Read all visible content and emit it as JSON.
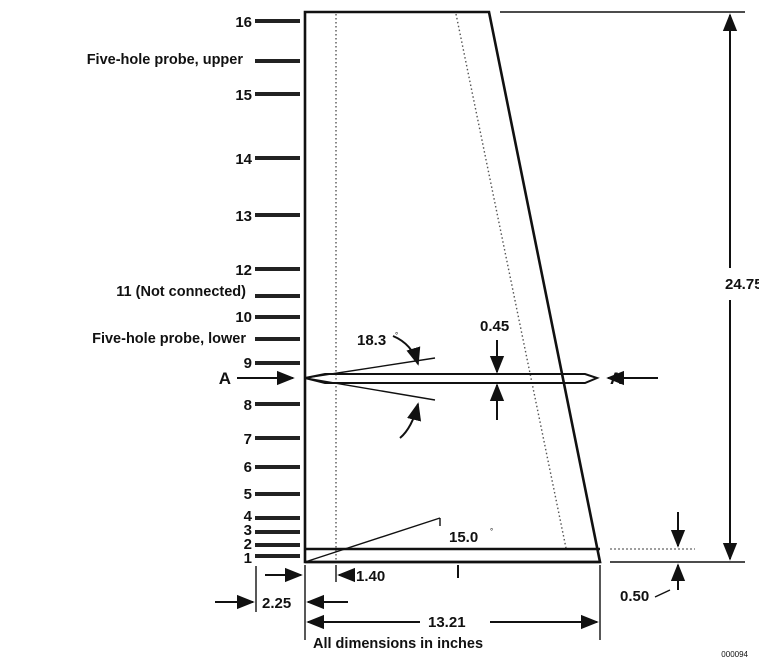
{
  "figure": {
    "tap_labels": {
      "t16": "16",
      "t15": "15",
      "t14": "14",
      "t13": "13",
      "t12": "12",
      "t11": "11 (Not connected)",
      "t10": "10",
      "t9": "9",
      "t8": "8",
      "t7": "7",
      "t6": "6",
      "t5": "5",
      "t4": "4",
      "t3": "3",
      "t2": "2",
      "t1": "1"
    },
    "probe_upper": "Five-hole probe, upper",
    "probe_lower": "Five-hole probe, lower",
    "section_marker": "A",
    "dimensions": {
      "span": "24.75",
      "thickness": "0.45",
      "wedge_angle": "18.3",
      "sweep_angle": "15.0",
      "offset_1": "1.40",
      "offset_2": "2.25",
      "base_width": "13.21",
      "base_height": "0.50"
    },
    "note": "All dimensions in inches",
    "figure_id": "000094"
  }
}
